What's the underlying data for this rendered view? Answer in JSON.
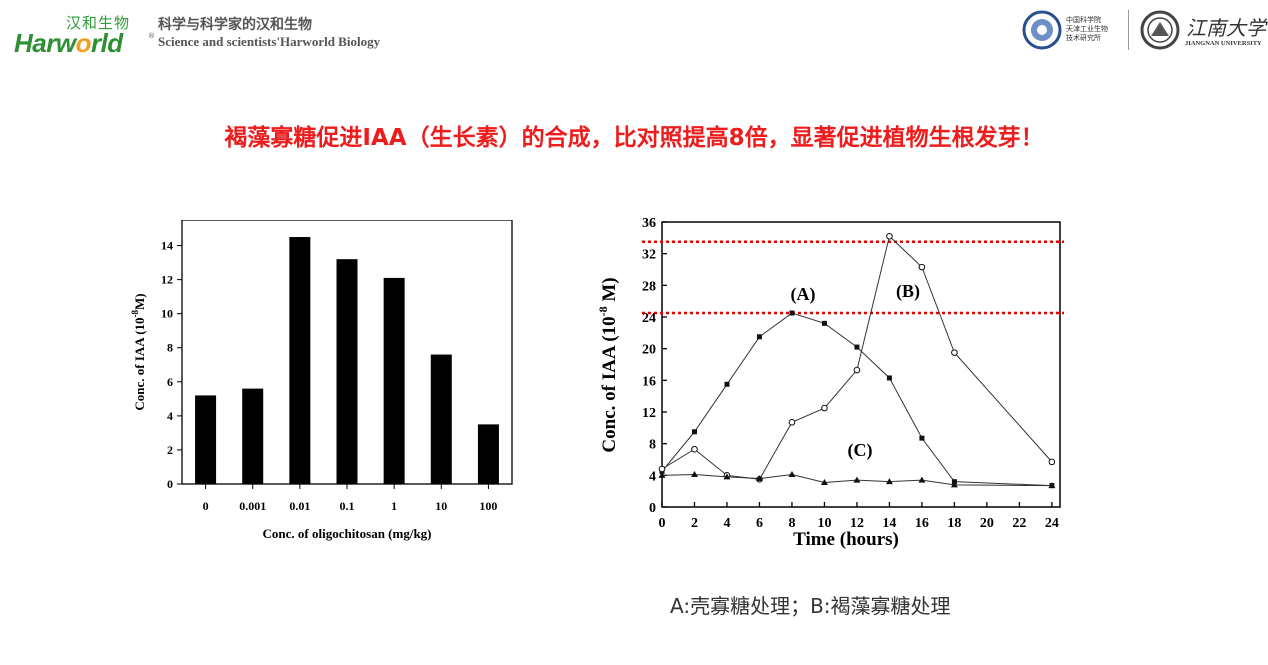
{
  "header": {
    "logo_cn": "汉和生物",
    "logo_en_a": "Harw",
    "logo_en_o": "o",
    "logo_en_b": "rld",
    "logo_reg": "®",
    "slogan_cn": "科学与科学家的汉和生物",
    "slogan_en": "Science and scientists'Harworld Biology",
    "institute_lines": [
      "中国科学院",
      "天津工业生物",
      "技术研究所"
    ],
    "university_cn": "江南大学",
    "university_en": "JIANGNAN UNIVERSITY"
  },
  "headline": "褐藻寡糖促进IAA（生长素）的合成，比对照提高8倍，显著促进植物生根发芽！",
  "caption": "A:壳寡糖处理；B:褐藻寡糖处理",
  "colors": {
    "headline": "#ee1c1c",
    "bars": "#000000",
    "reference_lines": "#e00000",
    "brand_green": "#2e8f33",
    "brand_orange": "#f0a020"
  },
  "chart_data": [
    {
      "type": "bar",
      "categories": [
        "0",
        "0.001",
        "0.01",
        "0.1",
        "1",
        "10",
        "100"
      ],
      "values": [
        5.2,
        5.6,
        14.5,
        13.2,
        12.1,
        7.6,
        3.5
      ],
      "xlabel": "Conc. of  oligochitosan (mg/kg)",
      "ylabel_main": "Conc. of IAA  (10",
      "ylabel_exp": "-8",
      "ylabel_end": "M)",
      "ylim": [
        0,
        15.5
      ],
      "yticks": [
        "0",
        "2",
        "4",
        "6",
        "8",
        "10",
        "12",
        "14"
      ],
      "grid": false
    },
    {
      "type": "line",
      "xlabel": "Time (hours)",
      "ylabel_main": "Conc. of IAA (10",
      "ylabel_exp": "-8",
      "ylabel_end": " M)",
      "xlim": [
        0,
        24.5
      ],
      "ylim": [
        0,
        36
      ],
      "xticks": [
        "0",
        "2",
        "4",
        "6",
        "8",
        "10",
        "12",
        "14",
        "16",
        "18",
        "20",
        "22",
        "24"
      ],
      "yticks": [
        "0",
        "4",
        "8",
        "12",
        "16",
        "20",
        "24",
        "28",
        "32",
        "36"
      ],
      "grid": false,
      "series": [
        {
          "name": "(A)",
          "marker": "square",
          "x": [
            0,
            2,
            4,
            6,
            8,
            10,
            12,
            14,
            16,
            18,
            24
          ],
          "y": [
            4.5,
            9.5,
            15.5,
            21.5,
            24.5,
            23.2,
            20.2,
            16.3,
            8.7,
            3.2,
            2.7
          ]
        },
        {
          "name": "(B)",
          "marker": "circle",
          "x": [
            0,
            2,
            4,
            6,
            8,
            10,
            12,
            14,
            16,
            18,
            24
          ],
          "y": [
            4.8,
            7.3,
            4.0,
            3.5,
            10.7,
            12.5,
            17.3,
            34.2,
            30.3,
            19.5,
            5.7
          ]
        },
        {
          "name": "(C)",
          "marker": "triangle",
          "x": [
            0,
            2,
            4,
            6,
            8,
            10,
            12,
            14,
            16,
            18,
            24
          ],
          "y": [
            4.0,
            4.1,
            3.8,
            3.6,
            4.1,
            3.1,
            3.4,
            3.2,
            3.4,
            2.8,
            2.7
          ]
        }
      ],
      "reference_lines": [
        33.5,
        24.5
      ]
    }
  ]
}
